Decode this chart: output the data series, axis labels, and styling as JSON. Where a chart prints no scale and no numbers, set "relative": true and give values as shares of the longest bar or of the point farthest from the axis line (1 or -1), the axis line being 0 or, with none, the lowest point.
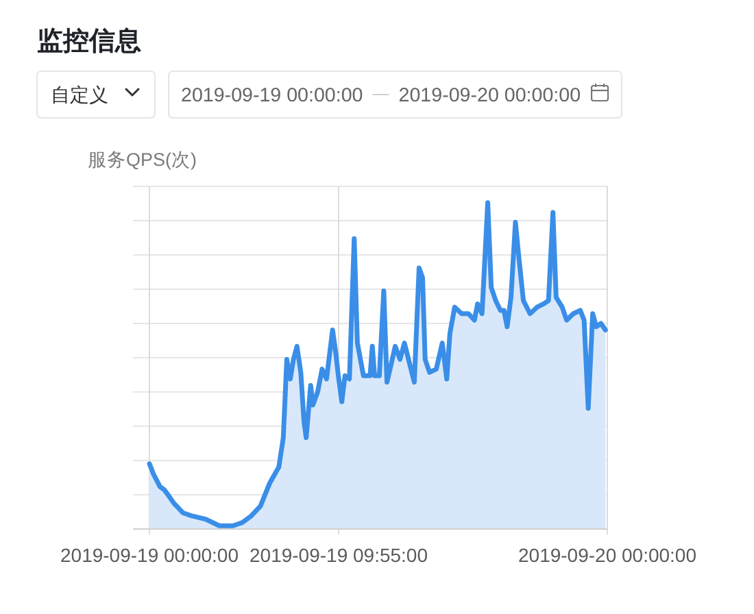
{
  "chart_data": {
    "type": "area",
    "title": "监控信息",
    "ylabel": "服务QPS(次)",
    "annotations": [
      "自定义",
      "2019-09-19 00:00:00",
      "2019-09-20 00:00:00"
    ],
    "relative": true,
    "color": "#3a8ee8",
    "line_style": "solid",
    "grid": true,
    "xlim": [
      "2019-09-19T00:00",
      "2019-09-20T00:00"
    ],
    "xticks": [
      {
        "value": "2019-09-19T00:00",
        "label": "2019-09-19 00:00:00"
      },
      {
        "value": "2019-09-19T09:55",
        "label": "2019-09-19 09:55:00"
      },
      {
        "value": "2019-09-20T00:00",
        "label": "2019-09-20 00:00:00"
      }
    ],
    "x": [
      "2019-09-19T00:00",
      "2019-09-19T00:12",
      "2019-09-19T00:33",
      "2019-09-19T00:47",
      "2019-09-19T01:02",
      "2019-09-19T01:16",
      "2019-09-19T01:45",
      "2019-09-19T02:14",
      "2019-09-19T02:57",
      "2019-09-19T03:40",
      "2019-09-19T04:23",
      "2019-09-19T04:52",
      "2019-09-19T05:20",
      "2019-09-19T05:49",
      "2019-09-19T06:18",
      "2019-09-19T06:47",
      "2019-09-19T07:01",
      "2019-09-19T07:12",
      "2019-09-19T07:23",
      "2019-09-19T07:33",
      "2019-09-19T07:44",
      "2019-09-19T07:56",
      "2019-09-19T08:06",
      "2019-09-19T08:13",
      "2019-09-19T08:20",
      "2019-09-19T08:27",
      "2019-09-19T08:34",
      "2019-09-19T08:49",
      "2019-09-19T09:03",
      "2019-09-19T09:17",
      "2019-09-19T09:36",
      "2019-09-19T09:46",
      "2019-09-19T09:54",
      "2019-09-19T10:05",
      "2019-09-19T10:15",
      "2019-09-19T10:29",
      "2019-09-19T10:44",
      "2019-09-19T10:54",
      "2019-09-19T11:13",
      "2019-09-19T11:34",
      "2019-09-19T11:41",
      "2019-09-19T11:48",
      "2019-09-19T12:03",
      "2019-09-19T12:17",
      "2019-09-19T12:27",
      "2019-09-19T12:39",
      "2019-09-19T12:53",
      "2019-09-19T13:08",
      "2019-09-19T13:22",
      "2019-09-19T13:40",
      "2019-09-19T13:53",
      "2019-09-19T14:08",
      "2019-09-19T14:19",
      "2019-09-19T14:27",
      "2019-09-19T14:41",
      "2019-09-19T15:02",
      "2019-09-19T15:21",
      "2019-09-19T15:35",
      "2019-09-19T15:45",
      "2019-09-19T16:00",
      "2019-09-19T16:22",
      "2019-09-19T16:43",
      "2019-09-19T17:02",
      "2019-09-19T17:12",
      "2019-09-19T17:26",
      "2019-09-19T17:44",
      "2019-09-19T17:55",
      "2019-09-19T18:09",
      "2019-09-19T18:24",
      "2019-09-19T18:35",
      "2019-09-19T18:45",
      "2019-09-19T18:57",
      "2019-09-19T19:11",
      "2019-09-19T19:21",
      "2019-09-19T19:36",
      "2019-09-19T19:57",
      "2019-09-19T20:19",
      "2019-09-19T20:40",
      "2019-09-19T20:55",
      "2019-09-19T21:09",
      "2019-09-19T21:19",
      "2019-09-19T21:38",
      "2019-09-19T21:52",
      "2019-09-19T22:13",
      "2019-09-19T22:35",
      "2019-09-19T22:47",
      "2019-09-19T23:00",
      "2019-09-19T23:14",
      "2019-09-19T23:25",
      "2019-09-19T23:40",
      "2019-09-19T23:54"
    ],
    "values": [
      0.2,
      0.17,
      0.13,
      0.12,
      0.1,
      0.08,
      0.05,
      0.04,
      0.03,
      0.01,
      0.01,
      0.02,
      0.04,
      0.07,
      0.14,
      0.19,
      0.28,
      0.52,
      0.46,
      0.52,
      0.56,
      0.48,
      0.33,
      0.28,
      0.36,
      0.44,
      0.38,
      0.42,
      0.49,
      0.46,
      0.61,
      0.54,
      0.47,
      0.39,
      0.47,
      0.46,
      0.89,
      0.57,
      0.47,
      0.47,
      0.56,
      0.47,
      0.47,
      0.73,
      0.45,
      0.5,
      0.56,
      0.52,
      0.57,
      0.5,
      0.45,
      0.8,
      0.77,
      0.52,
      0.48,
      0.49,
      0.57,
      0.46,
      0.6,
      0.68,
      0.66,
      0.66,
      0.64,
      0.69,
      0.66,
      1,
      0.74,
      0.7,
      0.67,
      0.67,
      0.62,
      0.71,
      0.94,
      0.84,
      0.7,
      0.66,
      0.68,
      0.69,
      0.7,
      0.97,
      0.71,
      0.68,
      0.64,
      0.66,
      0.67,
      0.64,
      0.37,
      0.66,
      0.62,
      0.63,
      0.61
    ]
  }
}
